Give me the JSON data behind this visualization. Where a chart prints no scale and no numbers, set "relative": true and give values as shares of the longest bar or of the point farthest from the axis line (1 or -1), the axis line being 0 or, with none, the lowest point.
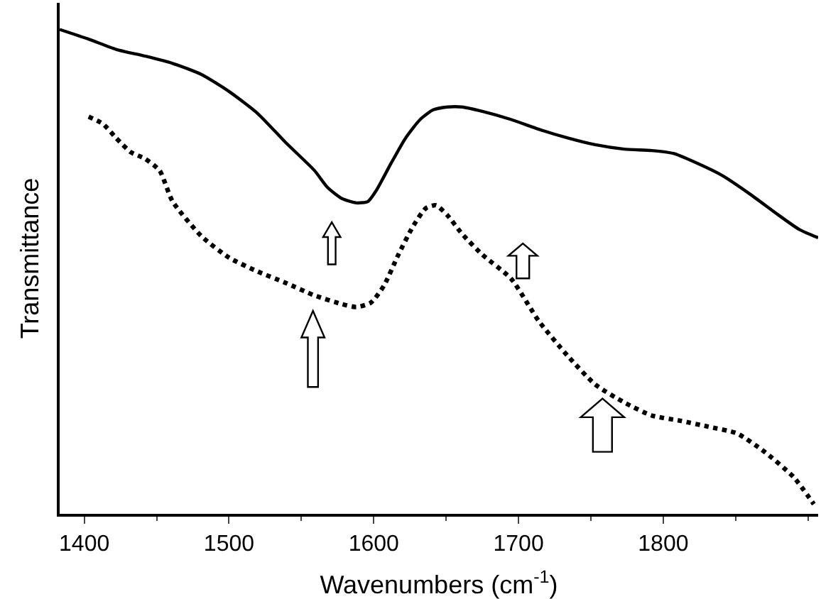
{
  "chart_data": {
    "type": "line",
    "relative": true,
    "xlabel": "Wavenumbers (cm$^{-1}$)",
    "ylabel": "Transmittance",
    "xlim": [
      1383,
      1907
    ],
    "xticks": [
      1400,
      1500,
      1600,
      1700,
      1800
    ],
    "series": [
      {
        "color": "#000000",
        "line_style": "solid",
        "x": [
          1383,
          1403,
          1422,
          1442,
          1461,
          1481,
          1500,
          1520,
          1539,
          1559,
          1568,
          1578,
          1588,
          1596,
          1602,
          1612,
          1622,
          1632,
          1641,
          1651,
          1661,
          1675,
          1695,
          1714,
          1734,
          1753,
          1773,
          1792,
          1807,
          1821,
          1841,
          1860,
          1880,
          1894,
          1907
        ],
        "values": [
          1.0,
          0.98,
          0.959,
          0.945,
          0.93,
          0.907,
          0.872,
          0.826,
          0.767,
          0.709,
          0.674,
          0.651,
          0.642,
          0.645,
          0.669,
          0.724,
          0.776,
          0.814,
          0.834,
          0.84,
          0.84,
          0.831,
          0.814,
          0.794,
          0.776,
          0.762,
          0.753,
          0.75,
          0.744,
          0.727,
          0.698,
          0.66,
          0.616,
          0.587,
          0.57
        ]
      },
      {
        "color": "#000000",
        "line_style": "dotted",
        "x": [
          1403,
          1413,
          1422,
          1432,
          1442,
          1452,
          1461,
          1481,
          1500,
          1520,
          1539,
          1559,
          1578,
          1588,
          1598,
          1607,
          1617,
          1627,
          1636,
          1643,
          1651,
          1661,
          1675,
          1695,
          1714,
          1734,
          1753,
          1773,
          1792,
          1812,
          1831,
          1851,
          1870,
          1890,
          1904
        ],
        "values": [
          0.82,
          0.805,
          0.776,
          0.747,
          0.733,
          0.709,
          0.645,
          0.573,
          0.529,
          0.5,
          0.477,
          0.451,
          0.433,
          0.427,
          0.436,
          0.471,
          0.535,
          0.593,
          0.631,
          0.637,
          0.616,
          0.578,
          0.535,
          0.485,
          0.398,
          0.326,
          0.267,
          0.23,
          0.203,
          0.192,
          0.18,
          0.166,
          0.128,
          0.076,
          0.02
        ]
      }
    ]
  }
}
